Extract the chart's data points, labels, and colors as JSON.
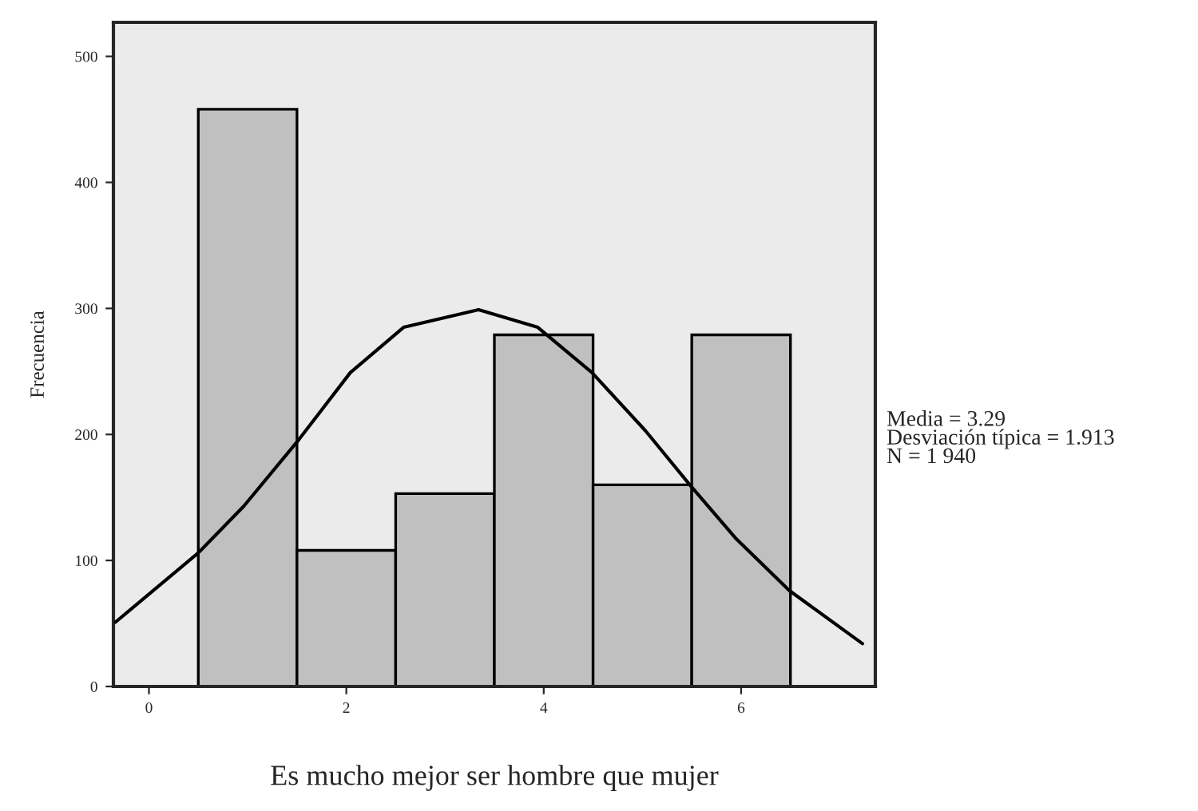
{
  "chart_data": {
    "type": "histogram",
    "xlabel": "Es mucho mejor ser hombre que mujer",
    "ylabel": "Frecuencia",
    "bins": [
      0.5,
      1.5,
      2.5,
      3.5,
      4.5,
      5.5,
      6.5
    ],
    "series": [
      {
        "color": "#c0c0c0",
        "values": [
          458,
          108,
          153,
          279,
          160,
          279
        ]
      },
      {
        "type": "line",
        "color": "#000000",
        "x": [
          -0.34,
          0.5,
          0.96,
          1.52,
          2.04,
          2.58,
          3.34,
          3.94,
          4.49,
          5.03,
          5.48,
          5.94,
          6.49,
          7.23
        ],
        "values": [
          51,
          106,
          143,
          196,
          249,
          285,
          299,
          285,
          249,
          203,
          160,
          118,
          76,
          34
        ]
      }
    ],
    "xlim": [
      -0.36,
      7.36
    ],
    "ylim": [
      0,
      527
    ],
    "xticks": [
      0,
      2,
      4,
      6
    ],
    "yticks": [
      0,
      100,
      200,
      300,
      400,
      500
    ],
    "grid": false,
    "legend": false,
    "marker": "none",
    "line_style": "solid",
    "annotations": [
      "Media = 3.29\nDesviación típica = 1.913\nN = 1 940"
    ]
  }
}
